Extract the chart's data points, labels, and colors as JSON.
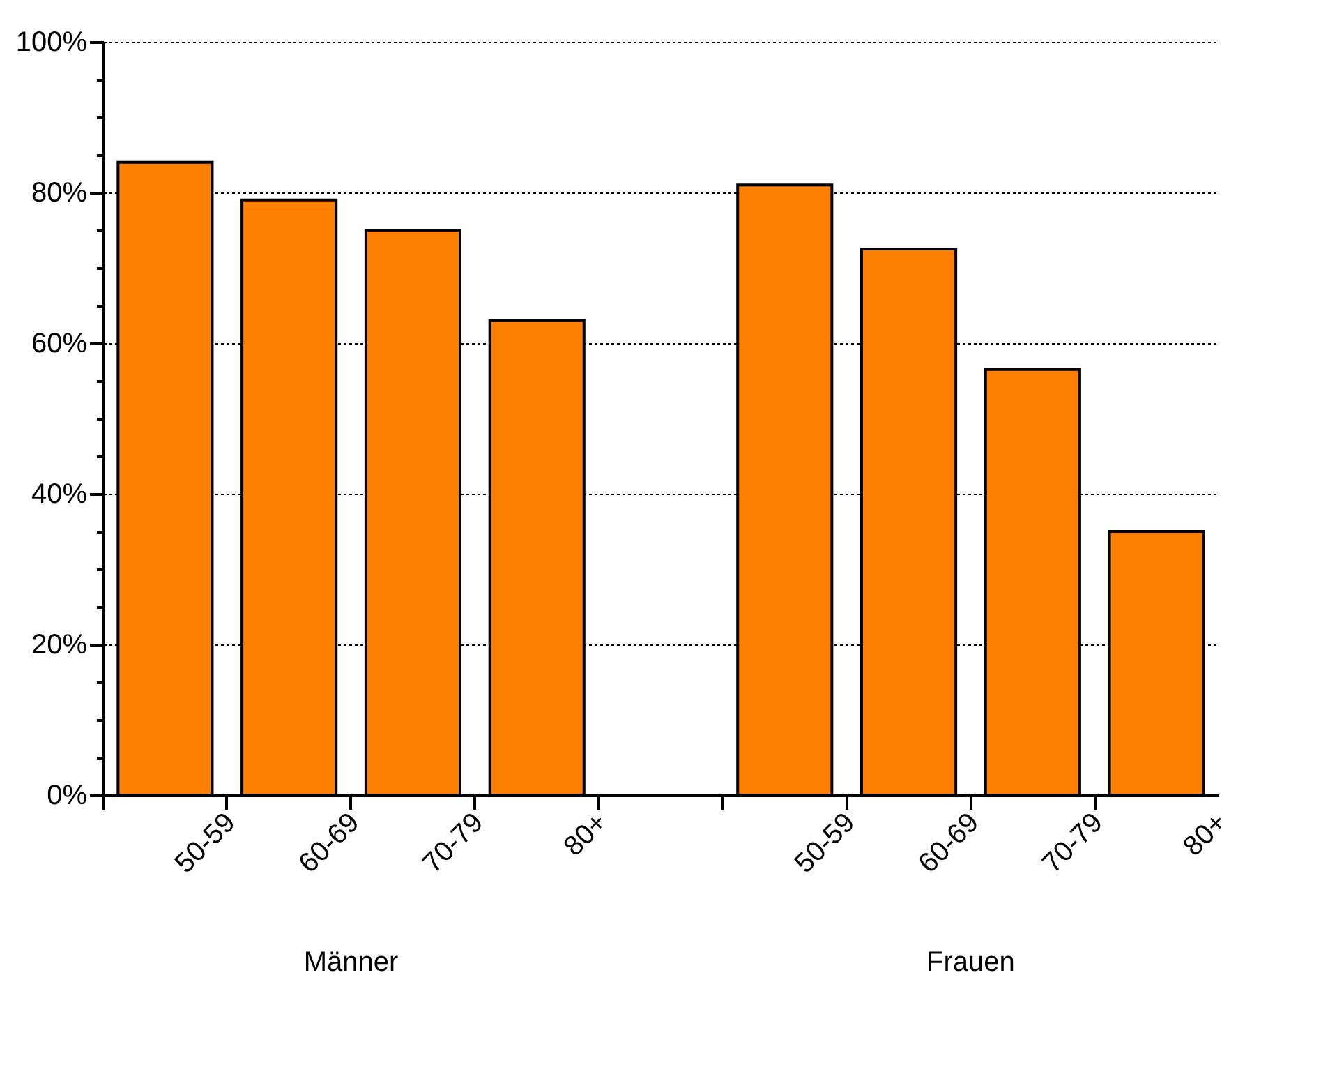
{
  "chart_data": {
    "type": "bar",
    "categories": [
      "50-59",
      "60-69",
      "70-79",
      "80+",
      null,
      "50-59",
      "60-69",
      "70-79",
      "80+"
    ],
    "values": [
      84,
      79,
      75,
      63,
      null,
      81,
      72.5,
      56.5,
      35
    ],
    "color": "#ff8000",
    "annotations": [
      "Männer",
      "Frauen"
    ],
    "ylim": [
      0,
      100
    ],
    "yticks": [
      {
        "value": 0,
        "label": "0%"
      },
      {
        "value": 5,
        "label": null
      },
      {
        "value": 10,
        "label": null
      },
      {
        "value": 15,
        "label": null
      },
      {
        "value": 20,
        "label": "20%"
      },
      {
        "value": 25,
        "label": null
      },
      {
        "value": 30,
        "label": null
      },
      {
        "value": 35,
        "label": null
      },
      {
        "value": 40,
        "label": "40%"
      },
      {
        "value": 45,
        "label": null
      },
      {
        "value": 50,
        "label": null
      },
      {
        "value": 55,
        "label": null
      },
      {
        "value": 60,
        "label": "60%"
      },
      {
        "value": 65,
        "label": null
      },
      {
        "value": 70,
        "label": null
      },
      {
        "value": 75,
        "label": null
      },
      {
        "value": 80,
        "label": "80%"
      },
      {
        "value": 85,
        "label": null
      },
      {
        "value": 90,
        "label": null
      },
      {
        "value": 95,
        "label": null
      },
      {
        "value": 100,
        "label": "100%"
      }
    ],
    "grid": "y"
  }
}
